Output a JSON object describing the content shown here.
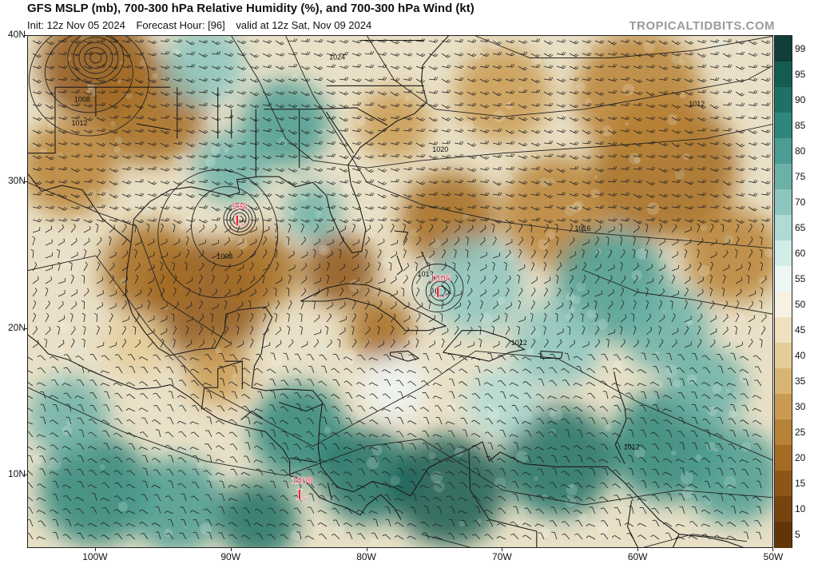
{
  "header": {
    "title": "GFS MSLP (mb), 700-300 hPa Relative Humidity (%), and 700-300 hPa Wind (kt)",
    "init": "Init: 12z Nov 05 2024",
    "forecast_hour": "Forecast Hour: [96]",
    "valid": "valid at 12z Sat, Nov 09 2024",
    "credit": "TROPICALTIDBITS.COM"
  },
  "map": {
    "lat_range": [
      5,
      40
    ],
    "lon_range": [
      -105,
      -50
    ],
    "lat_labels": [
      "40N",
      "30N",
      "20N",
      "10N"
    ],
    "lon_labels": [
      "100W",
      "90W",
      "80W",
      "70W",
      "60W",
      "50W"
    ],
    "lows": [
      {
        "pressure": "998",
        "symbol": "L",
        "lat": 27.5,
        "lon": -89.4
      },
      {
        "pressure": "1006",
        "symbol": "L",
        "lat": 22.6,
        "lon": -74.6
      },
      {
        "pressure": "1009",
        "symbol": "L",
        "lat": 8.8,
        "lon": -84.8
      }
    ],
    "isobar_labels": [
      {
        "text": "1024",
        "lat": 38.4,
        "lon": -82.2
      },
      {
        "text": "1008",
        "lat": 35.5,
        "lon": -101.0
      },
      {
        "text": "1012",
        "lat": 33.9,
        "lon": -101.2
      },
      {
        "text": "1020",
        "lat": 32.1,
        "lon": -74.6
      },
      {
        "text": "1012",
        "lat": 35.2,
        "lon": -55.7
      },
      {
        "text": "1016",
        "lat": 26.7,
        "lon": -64.1
      },
      {
        "text": "1008",
        "lat": 24.8,
        "lon": -90.5
      },
      {
        "text": "1012",
        "lat": 23.6,
        "lon": -75.7
      },
      {
        "text": "1012",
        "lat": 18.9,
        "lon": -68.8
      },
      {
        "text": "1012",
        "lat": 11.8,
        "lon": -60.5
      }
    ]
  },
  "colorbar": {
    "labels": [
      "99",
      "95",
      "90",
      "85",
      "80",
      "75",
      "70",
      "65",
      "60",
      "55",
      "50",
      "45",
      "40",
      "35",
      "30",
      "25",
      "20",
      "15",
      "10",
      "5"
    ],
    "colors": [
      "#0f3f38",
      "#155c52",
      "#1f7166",
      "#2f867b",
      "#4b9c92",
      "#6bb1a8",
      "#8cc6bf",
      "#b0dad4",
      "#d2ece8",
      "#eef6f4",
      "#f7f1e3",
      "#efe0bf",
      "#e5cc98",
      "#d9b574",
      "#c99b52",
      "#b88236",
      "#a46b22",
      "#8e5616",
      "#78440d",
      "#613506"
    ]
  }
}
